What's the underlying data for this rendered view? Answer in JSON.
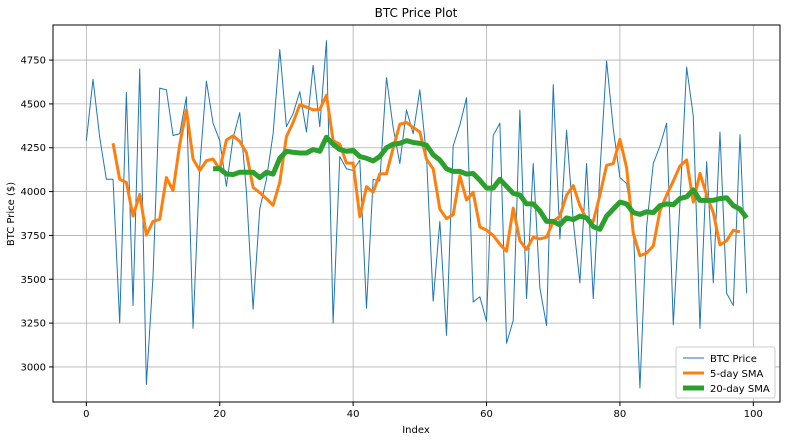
{
  "chart_data": {
    "type": "line",
    "title": "BTC Price Plot",
    "xlabel": "Index",
    "ylabel": "BTC Price ($)",
    "xlim": [
      -5,
      104
    ],
    "ylim": [
      2800,
      4950
    ],
    "xticks": [
      0,
      20,
      40,
      60,
      80,
      100
    ],
    "yticks": [
      3000,
      3250,
      3500,
      3750,
      4000,
      4250,
      4500,
      4750
    ],
    "grid": true,
    "legend_position": "bottom-right",
    "series": [
      {
        "name": "BTC Price",
        "color": "#1f77b4",
        "x_start": 0,
        "values": [
          4290,
          4640,
          4310,
          4070,
          4070,
          3250,
          4565,
          3350,
          4700,
          2900,
          3520,
          4590,
          4580,
          4320,
          4330,
          4540,
          3220,
          4140,
          4630,
          4390,
          4290,
          4030,
          4305,
          4450,
          4000,
          3330,
          3900,
          4070,
          4330,
          4810,
          4370,
          4445,
          4570,
          4340,
          4720,
          4370,
          4860,
          3250,
          4200,
          4130,
          4120,
          4180,
          3335,
          4070,
          4060,
          4650,
          4365,
          4160,
          4465,
          4330,
          4580,
          4200,
          3375,
          3830,
          3180,
          4260,
          4380,
          4535,
          3370,
          3400,
          3260,
          4320,
          4390,
          3135,
          3265,
          4465,
          3390,
          4160,
          3450,
          3235,
          4610,
          3730,
          4350,
          3830,
          3480,
          4160,
          3390,
          4110,
          4745,
          4360,
          4080,
          4045,
          3800,
          2880,
          3800,
          4160,
          4260,
          4390,
          3240,
          3935,
          4710,
          4430,
          3220,
          4170,
          3480,
          4340,
          3420,
          3350,
          4325,
          3420
        ]
      },
      {
        "name": "5-day SMA",
        "color": "#ff7f0e",
        "x_start": 4,
        "values": [
          4276,
          4070,
          4052,
          3860,
          3984,
          3752,
          3830,
          3842,
          4080,
          4006,
          4268,
          4466,
          4186,
          4120,
          4176,
          4186,
          4126,
          4294,
          4318,
          4286,
          4222,
          4024,
          3994,
          3960,
          3922,
          4054,
          4314,
          4394,
          4496,
          4482,
          4466,
          4468,
          4550,
          4290,
          4270,
          4162,
          4162,
          3856,
          4028,
          3996,
          4102,
          4102,
          4248,
          4384,
          4394,
          4366,
          4340,
          4184,
          4130,
          3900,
          3846,
          3868,
          4090,
          3952,
          3996,
          3798,
          3780,
          3750,
          3700,
          3660,
          3906,
          3720,
          3670,
          3740,
          3730,
          3740,
          3830,
          3860,
          3980,
          4034,
          3920,
          3842,
          3830,
          3980,
          4150,
          4160,
          4298,
          4136,
          3762,
          3634,
          3650,
          3690,
          3890,
          3980,
          4060,
          4146,
          4180,
          3940,
          4104,
          3980,
          3880,
          3696,
          3720,
          3780,
          3770
        ]
      },
      {
        "name": "20-day SMA",
        "color": "#2ca02c",
        "x_start": 19,
        "values": [
          4130,
          4130,
          4100,
          4097,
          4110,
          4110,
          4110,
          4080,
          4110,
          4100,
          4190,
          4230,
          4224,
          4220,
          4220,
          4240,
          4230,
          4310,
          4270,
          4240,
          4230,
          4235,
          4200,
          4190,
          4175,
          4200,
          4250,
          4270,
          4275,
          4290,
          4280,
          4275,
          4265,
          4210,
          4180,
          4130,
          4115,
          4115,
          4100,
          4103,
          4065,
          4020,
          4020,
          4070,
          4030,
          3990,
          3980,
          3930,
          3930,
          3890,
          3830,
          3830,
          3810,
          3850,
          3840,
          3860,
          3850,
          3800,
          3785,
          3860,
          3900,
          3940,
          3930,
          3880,
          3870,
          3885,
          3880,
          3920,
          3930,
          3925,
          3960,
          3970,
          4010,
          3950,
          3950,
          3950,
          3960,
          3965,
          3920,
          3900,
          3850
        ]
      }
    ]
  }
}
